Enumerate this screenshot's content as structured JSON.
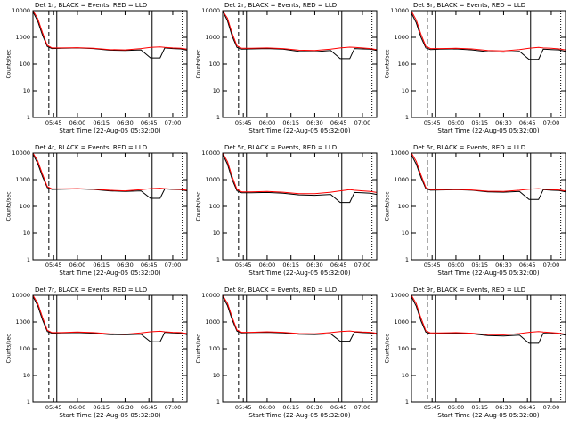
{
  "chart_data": [
    {
      "type": "line",
      "title": "Det 1r, BLACK = Events, RED = LLD",
      "ylabel": "Counts/sec",
      "xlabel": "Start Time (22-Aug-05 05:32:00)",
      "log_y": true,
      "ylim": [
        1,
        10000
      ],
      "yticks": [
        1,
        10,
        100,
        1000,
        10000
      ],
      "xlim": [
        "05:32",
        "07:09"
      ],
      "xticks": [
        "05:45",
        "06:00",
        "06:15",
        "06:30",
        "06:45",
        "07:00"
      ],
      "vlines": [
        {
          "x": "05:42",
          "style": "dashed"
        },
        {
          "x": "05:47",
          "style": "solid"
        },
        {
          "x": "06:47",
          "style": "solid"
        },
        {
          "x": "07:06",
          "style": "dotted"
        }
      ],
      "x": [
        "05:32",
        "05:35",
        "05:38",
        "05:41",
        "05:44",
        "05:50",
        "06:00",
        "06:10",
        "06:20",
        "06:30",
        "06:40",
        "06:46",
        "06:52",
        "06:55",
        "07:00",
        "07:05",
        "07:09"
      ],
      "series": [
        {
          "color": "#000000",
          "values": [
            9000,
            4000,
            1200,
            450,
            380,
            390,
            400,
            380,
            330,
            320,
            340,
            170,
            170,
            400,
            380,
            370,
            330
          ]
        },
        {
          "color": "#ff0000",
          "values": [
            10000,
            5000,
            1500,
            500,
            400,
            400,
            410,
            390,
            350,
            340,
            380,
            420,
            440,
            420,
            400,
            390,
            360
          ]
        }
      ]
    },
    {
      "type": "line",
      "title": "Det 2r, BLACK = Events, RED = LLD",
      "ylabel": "Counts/sec",
      "xlabel": "Start Time (22-Aug-05 05:32:00)",
      "log_y": true,
      "ylim": [
        1,
        10000
      ],
      "yticks": [
        1,
        10,
        100,
        1000,
        10000
      ],
      "xlim": [
        "05:32",
        "07:09"
      ],
      "xticks": [
        "05:45",
        "06:00",
        "06:15",
        "06:30",
        "06:45",
        "07:00"
      ],
      "vlines": [
        {
          "x": "05:42",
          "style": "dashed"
        },
        {
          "x": "05:47",
          "style": "solid"
        },
        {
          "x": "06:47",
          "style": "solid"
        },
        {
          "x": "07:06",
          "style": "dotted"
        }
      ],
      "x": [
        "05:32",
        "05:35",
        "05:38",
        "05:41",
        "05:44",
        "05:50",
        "06:00",
        "06:10",
        "06:20",
        "06:30",
        "06:40",
        "06:46",
        "06:52",
        "06:55",
        "07:00",
        "07:05",
        "07:09"
      ],
      "series": [
        {
          "color": "#000000",
          "values": [
            9500,
            4200,
            1100,
            420,
            360,
            370,
            380,
            360,
            300,
            290,
            320,
            160,
            160,
            380,
            370,
            360,
            320
          ]
        },
        {
          "color": "#ff0000",
          "values": [
            10000,
            5200,
            1400,
            480,
            390,
            390,
            400,
            380,
            330,
            320,
            360,
            400,
            430,
            420,
            400,
            380,
            350
          ]
        }
      ]
    },
    {
      "type": "line",
      "title": "Det 3r, BLACK = Events, RED = LLD",
      "ylabel": "Counts/sec",
      "xlabel": "Start Time (22-Aug-05 05:32:00)",
      "log_y": true,
      "ylim": [
        1,
        10000
      ],
      "yticks": [
        1,
        10,
        100,
        1000,
        10000
      ],
      "xlim": [
        "05:32",
        "07:09"
      ],
      "xticks": [
        "05:45",
        "06:00",
        "06:15",
        "06:30",
        "06:45",
        "07:00"
      ],
      "vlines": [
        {
          "x": "05:42",
          "style": "dashed"
        },
        {
          "x": "05:47",
          "style": "solid"
        },
        {
          "x": "06:47",
          "style": "solid"
        },
        {
          "x": "07:06",
          "style": "dotted"
        }
      ],
      "x": [
        "05:32",
        "05:35",
        "05:38",
        "05:41",
        "05:44",
        "05:50",
        "06:00",
        "06:10",
        "06:20",
        "06:30",
        "06:40",
        "06:46",
        "06:52",
        "06:55",
        "07:00",
        "07:05",
        "07:09"
      ],
      "series": [
        {
          "color": "#000000",
          "values": [
            8000,
            3500,
            1000,
            400,
            350,
            360,
            370,
            340,
            290,
            280,
            300,
            150,
            150,
            360,
            350,
            340,
            300
          ]
        },
        {
          "color": "#ff0000",
          "values": [
            9500,
            4500,
            1300,
            460,
            380,
            380,
            390,
            370,
            320,
            310,
            350,
            390,
            420,
            400,
            390,
            370,
            340
          ]
        }
      ]
    },
    {
      "type": "line",
      "title": "Det 4r, BLACK = Events, RED = LLD",
      "ylabel": "Counts/sec",
      "xlabel": "Start Time (22-Aug-05 05:32:00)",
      "log_y": true,
      "ylim": [
        1,
        10000
      ],
      "yticks": [
        1,
        10,
        100,
        1000,
        10000
      ],
      "xlim": [
        "05:32",
        "07:09"
      ],
      "xticks": [
        "05:45",
        "06:00",
        "06:15",
        "06:30",
        "06:45",
        "07:00"
      ],
      "vlines": [
        {
          "x": "05:42",
          "style": "dashed"
        },
        {
          "x": "05:47",
          "style": "solid"
        },
        {
          "x": "06:47",
          "style": "solid"
        },
        {
          "x": "07:06",
          "style": "dotted"
        }
      ],
      "x": [
        "05:32",
        "05:35",
        "05:38",
        "05:41",
        "05:44",
        "05:50",
        "06:00",
        "06:10",
        "06:20",
        "06:30",
        "06:40",
        "06:46",
        "06:52",
        "06:55",
        "07:00",
        "07:05",
        "07:09"
      ],
      "series": [
        {
          "color": "#000000",
          "values": [
            9000,
            4000,
            1300,
            500,
            430,
            440,
            450,
            430,
            380,
            360,
            380,
            200,
            200,
            450,
            430,
            420,
            380
          ]
        },
        {
          "color": "#ff0000",
          "values": [
            10000,
            5000,
            1600,
            550,
            450,
            450,
            460,
            440,
            400,
            380,
            420,
            460,
            480,
            460,
            440,
            430,
            400
          ]
        }
      ]
    },
    {
      "type": "line",
      "title": "Det 5r, BLACK = Events, RED = LLD",
      "ylabel": "Counts/sec",
      "xlabel": "Start Time (22-Aug-05 05:32:00)",
      "log_y": true,
      "ylim": [
        1,
        10000
      ],
      "yticks": [
        1,
        10,
        100,
        1000,
        10000
      ],
      "xlim": [
        "05:32",
        "07:09"
      ],
      "xticks": [
        "05:45",
        "06:00",
        "06:15",
        "06:30",
        "06:45",
        "07:00"
      ],
      "vlines": [
        {
          "x": "05:42",
          "style": "dashed"
        },
        {
          "x": "05:47",
          "style": "solid"
        },
        {
          "x": "06:47",
          "style": "solid"
        },
        {
          "x": "07:06",
          "style": "dotted"
        }
      ],
      "x": [
        "05:32",
        "05:35",
        "05:38",
        "05:41",
        "05:44",
        "05:50",
        "06:00",
        "06:10",
        "06:20",
        "06:30",
        "06:40",
        "06:46",
        "06:52",
        "06:55",
        "07:00",
        "07:05",
        "07:09"
      ],
      "series": [
        {
          "color": "#000000",
          "values": [
            9000,
            3800,
            1000,
            380,
            320,
            320,
            330,
            310,
            270,
            260,
            280,
            140,
            140,
            330,
            320,
            310,
            280
          ]
        },
        {
          "color": "#ff0000",
          "values": [
            10000,
            4800,
            1300,
            430,
            350,
            350,
            360,
            340,
            300,
            300,
            340,
            380,
            420,
            400,
            380,
            360,
            330
          ]
        }
      ]
    },
    {
      "type": "line",
      "title": "Det 6r, BLACK = Events, RED = LLD",
      "ylabel": "Counts/sec",
      "xlabel": "Start Time (22-Aug-05 05:32:00)",
      "log_y": true,
      "ylim": [
        1,
        10000
      ],
      "yticks": [
        1,
        10,
        100,
        1000,
        10000
      ],
      "xlim": [
        "05:32",
        "07:09"
      ],
      "xticks": [
        "05:45",
        "06:00",
        "06:15",
        "06:30",
        "06:45",
        "07:00"
      ],
      "vlines": [
        {
          "x": "05:42",
          "style": "dashed"
        },
        {
          "x": "05:47",
          "style": "solid"
        },
        {
          "x": "06:47",
          "style": "solid"
        },
        {
          "x": "07:06",
          "style": "dotted"
        }
      ],
      "x": [
        "05:32",
        "05:35",
        "05:38",
        "05:41",
        "05:44",
        "05:50",
        "06:00",
        "06:10",
        "06:20",
        "06:30",
        "06:40",
        "06:46",
        "06:52",
        "06:55",
        "07:00",
        "07:05",
        "07:09"
      ],
      "series": [
        {
          "color": "#000000",
          "values": [
            8500,
            3800,
            1200,
            460,
            400,
            410,
            420,
            400,
            350,
            340,
            360,
            180,
            180,
            420,
            400,
            390,
            350
          ]
        },
        {
          "color": "#ff0000",
          "values": [
            10000,
            4900,
            1500,
            510,
            420,
            420,
            430,
            410,
            370,
            360,
            400,
            440,
            460,
            440,
            420,
            410,
            380
          ]
        }
      ]
    },
    {
      "type": "line",
      "title": "Det 7r, BLACK = Events, RED = LLD",
      "ylabel": "Counts/sec",
      "xlabel": "Start Time (22-Aug-05 05:32:00)",
      "log_y": true,
      "ylim": [
        1,
        10000
      ],
      "yticks": [
        1,
        10,
        100,
        1000,
        10000
      ],
      "xlim": [
        "05:32",
        "07:09"
      ],
      "xticks": [
        "05:45",
        "06:00",
        "06:15",
        "06:30",
        "06:45",
        "07:00"
      ],
      "vlines": [
        {
          "x": "05:42",
          "style": "dashed"
        },
        {
          "x": "05:47",
          "style": "solid"
        },
        {
          "x": "06:47",
          "style": "solid"
        },
        {
          "x": "07:06",
          "style": "dotted"
        }
      ],
      "x": [
        "05:32",
        "05:35",
        "05:38",
        "05:41",
        "05:44",
        "05:50",
        "06:00",
        "06:10",
        "06:20",
        "06:30",
        "06:40",
        "06:46",
        "06:52",
        "06:55",
        "07:00",
        "07:05",
        "07:09"
      ],
      "series": [
        {
          "color": "#000000",
          "values": [
            9000,
            4000,
            1200,
            440,
            380,
            390,
            400,
            380,
            340,
            330,
            350,
            180,
            180,
            410,
            390,
            380,
            340
          ]
        },
        {
          "color": "#ff0000",
          "values": [
            10000,
            5000,
            1500,
            490,
            400,
            400,
            420,
            400,
            360,
            350,
            390,
            430,
            450,
            430,
            410,
            400,
            370
          ]
        }
      ]
    },
    {
      "type": "line",
      "title": "Det 8r, BLACK = Events, RED = LLD",
      "ylabel": "Counts/sec",
      "xlabel": "Start Time (22-Aug-05 05:32:00)",
      "log_y": true,
      "ylim": [
        1,
        10000
      ],
      "yticks": [
        1,
        10,
        100,
        1000,
        10000
      ],
      "xlim": [
        "05:32",
        "07:09"
      ],
      "xticks": [
        "05:45",
        "06:00",
        "06:15",
        "06:30",
        "06:45",
        "07:00"
      ],
      "vlines": [
        {
          "x": "05:42",
          "style": "dashed"
        },
        {
          "x": "05:47",
          "style": "solid"
        },
        {
          "x": "06:47",
          "style": "solid"
        },
        {
          "x": "07:06",
          "style": "dotted"
        }
      ],
      "x": [
        "05:32",
        "05:35",
        "05:38",
        "05:41",
        "05:44",
        "05:50",
        "06:00",
        "06:10",
        "06:20",
        "06:30",
        "06:40",
        "06:46",
        "06:52",
        "06:55",
        "07:00",
        "07:05",
        "07:09"
      ],
      "series": [
        {
          "color": "#000000",
          "values": [
            9200,
            4100,
            1200,
            450,
            390,
            400,
            410,
            390,
            350,
            340,
            360,
            190,
            190,
            420,
            400,
            390,
            350
          ]
        },
        {
          "color": "#ff0000",
          "values": [
            10000,
            5100,
            1500,
            500,
            410,
            410,
            430,
            410,
            370,
            360,
            400,
            440,
            460,
            440,
            420,
            410,
            380
          ]
        }
      ]
    },
    {
      "type": "line",
      "title": "Det 9r, BLACK = Events, RED = LLD",
      "ylabel": "Counts/sec",
      "xlabel": "Start Time (22-Aug-05 05:32:00)",
      "log_y": true,
      "ylim": [
        1,
        10000
      ],
      "yticks": [
        1,
        10,
        100,
        1000,
        10000
      ],
      "xlim": [
        "05:32",
        "07:09"
      ],
      "xticks": [
        "05:45",
        "06:00",
        "06:15",
        "06:30",
        "06:45",
        "07:00"
      ],
      "vlines": [
        {
          "x": "05:42",
          "style": "dashed"
        },
        {
          "x": "05:47",
          "style": "solid"
        },
        {
          "x": "06:47",
          "style": "solid"
        },
        {
          "x": "07:06",
          "style": "dotted"
        }
      ],
      "x": [
        "05:32",
        "05:35",
        "05:38",
        "05:41",
        "05:44",
        "05:50",
        "06:00",
        "06:10",
        "06:20",
        "06:30",
        "06:40",
        "06:46",
        "06:52",
        "06:55",
        "07:00",
        "07:05",
        "07:09"
      ],
      "series": [
        {
          "color": "#000000",
          "values": [
            8800,
            3900,
            1100,
            420,
            360,
            370,
            380,
            360,
            310,
            300,
            320,
            160,
            160,
            380,
            370,
            360,
            320
          ]
        },
        {
          "color": "#ff0000",
          "values": [
            10000,
            4900,
            1400,
            470,
            390,
            390,
            400,
            380,
            340,
            330,
            370,
            410,
            440,
            420,
            400,
            380,
            350
          ]
        }
      ]
    }
  ]
}
